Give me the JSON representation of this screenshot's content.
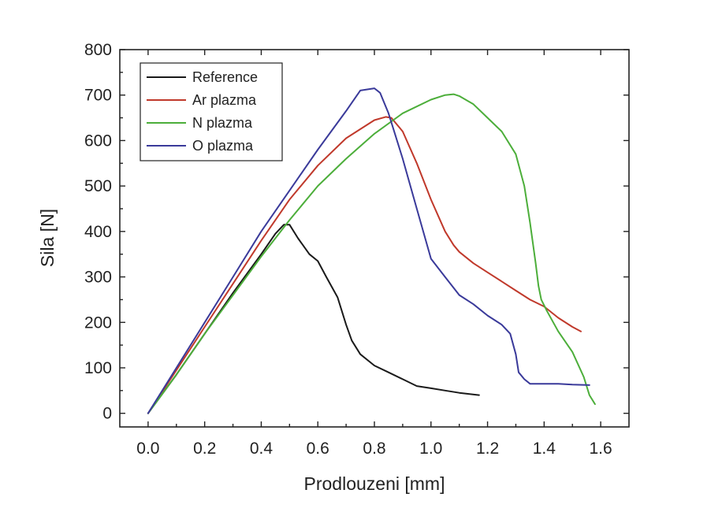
{
  "chart_data": {
    "type": "line",
    "title": "",
    "xlabel": "Prodlouzeni [mm]",
    "ylabel": "Sila [N]",
    "xlim": [
      -0.1,
      1.7
    ],
    "ylim": [
      -30,
      800
    ],
    "xticks": [
      0.0,
      0.2,
      0.4,
      0.6,
      0.8,
      1.0,
      1.2,
      1.4,
      1.6
    ],
    "xtick_labels": [
      "0.0",
      "0.2",
      "0.4",
      "0.6",
      "0.8",
      "1.0",
      "1.2",
      "1.4",
      "1.6"
    ],
    "yticks": [
      0,
      100,
      200,
      300,
      400,
      500,
      600,
      700,
      800
    ],
    "ytick_labels": [
      "0",
      "100",
      "200",
      "300",
      "400",
      "500",
      "600",
      "700",
      "800"
    ],
    "grid": false,
    "legend_position": "top-left",
    "series": [
      {
        "name": "Reference",
        "color": "#1a1a1a",
        "x": [
          0.0,
          0.1,
          0.2,
          0.3,
          0.4,
          0.45,
          0.48,
          0.5,
          0.53,
          0.57,
          0.6,
          0.63,
          0.67,
          0.7,
          0.72,
          0.75,
          0.8,
          0.85,
          0.9,
          0.95,
          1.0,
          1.05,
          1.1,
          1.17
        ],
        "y": [
          0,
          85,
          175,
          265,
          350,
          395,
          415,
          415,
          385,
          350,
          335,
          300,
          255,
          195,
          160,
          130,
          105,
          90,
          75,
          60,
          55,
          50,
          45,
          40
        ]
      },
      {
        "name": "Ar plazma",
        "color": "#c0392b",
        "x": [
          0.0,
          0.1,
          0.2,
          0.3,
          0.4,
          0.5,
          0.6,
          0.7,
          0.8,
          0.84,
          0.86,
          0.9,
          0.95,
          1.0,
          1.05,
          1.08,
          1.1,
          1.15,
          1.2,
          1.25,
          1.3,
          1.35,
          1.4,
          1.45,
          1.5,
          1.53
        ],
        "y": [
          0,
          95,
          190,
          285,
          380,
          470,
          545,
          605,
          645,
          652,
          650,
          620,
          550,
          470,
          400,
          370,
          355,
          330,
          310,
          290,
          270,
          250,
          235,
          210,
          190,
          180
        ]
      },
      {
        "name": "N plazma",
        "color": "#4cae3a",
        "x": [
          0.0,
          0.1,
          0.2,
          0.3,
          0.4,
          0.5,
          0.6,
          0.7,
          0.8,
          0.9,
          1.0,
          1.05,
          1.08,
          1.1,
          1.15,
          1.2,
          1.25,
          1.3,
          1.33,
          1.35,
          1.37,
          1.38,
          1.39,
          1.41,
          1.45,
          1.5,
          1.54,
          1.56,
          1.58
        ],
        "y": [
          0,
          85,
          175,
          260,
          345,
          425,
          500,
          560,
          615,
          660,
          690,
          700,
          702,
          698,
          680,
          650,
          620,
          570,
          500,
          420,
          330,
          280,
          250,
          225,
          180,
          135,
          80,
          40,
          20
        ]
      },
      {
        "name": "O plazma",
        "color": "#3a3a9a",
        "x": [
          0.0,
          0.1,
          0.2,
          0.3,
          0.4,
          0.5,
          0.6,
          0.7,
          0.75,
          0.8,
          0.82,
          0.85,
          0.9,
          0.95,
          1.0,
          1.05,
          1.1,
          1.15,
          1.2,
          1.25,
          1.28,
          1.3,
          1.31,
          1.33,
          1.35,
          1.4,
          1.45,
          1.5,
          1.56
        ],
        "y": [
          0,
          100,
          200,
          300,
          400,
          490,
          580,
          665,
          710,
          715,
          705,
          660,
          560,
          450,
          340,
          300,
          260,
          240,
          215,
          195,
          175,
          130,
          90,
          75,
          65,
          65,
          65,
          63,
          62
        ]
      }
    ]
  }
}
